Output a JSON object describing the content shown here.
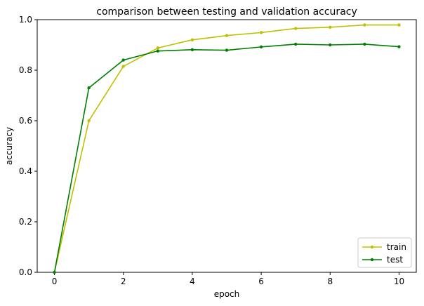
{
  "chart_data": {
    "type": "line",
    "title": "comparison between testing and validation accuracy",
    "xlabel": "epoch",
    "ylabel": "accuracy",
    "xlim": [
      -0.5,
      10.5
    ],
    "ylim": [
      0.0,
      1.0
    ],
    "xticks": [
      0,
      2,
      4,
      6,
      8,
      10
    ],
    "yticks": [
      0.0,
      0.2,
      0.4,
      0.6,
      0.8,
      1.0
    ],
    "x": [
      0,
      1,
      2,
      3,
      4,
      5,
      6,
      7,
      8,
      9,
      10
    ],
    "series": [
      {
        "name": "train",
        "color": "#bfbf00",
        "values": [
          0.0,
          0.6,
          0.815,
          0.888,
          0.92,
          0.937,
          0.949,
          0.965,
          0.97,
          0.979,
          0.979
        ]
      },
      {
        "name": "test",
        "color": "#008000",
        "values": [
          0.0,
          0.73,
          0.84,
          0.876,
          0.881,
          0.879,
          0.892,
          0.903,
          0.9,
          0.903,
          0.893
        ]
      }
    ],
    "legend_position": "lower right",
    "grid": false
  }
}
